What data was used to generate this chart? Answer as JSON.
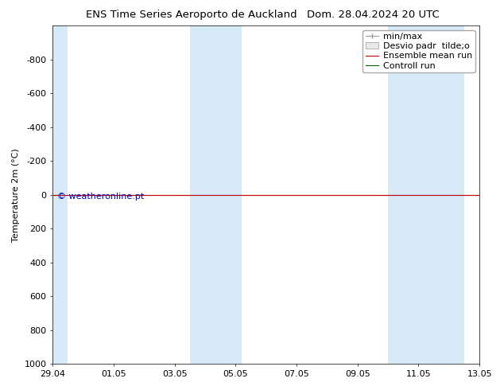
{
  "title_left": "ENS Time Series Aeroporto de Auckland",
  "title_right": "Dom. 28.04.2024 20 UTC",
  "ylabel": "Temperature 2m (°C)",
  "ylim": [
    1000,
    -1000
  ],
  "yticks": [
    1000,
    800,
    600,
    400,
    200,
    0,
    -200,
    -400,
    -600,
    -800
  ],
  "xtick_labels": [
    "29.04",
    "01.05",
    "03.05",
    "05.05",
    "07.05",
    "09.05",
    "11.05",
    "13.05"
  ],
  "xtick_positions": [
    0,
    2,
    4,
    6,
    8,
    10,
    12,
    14
  ],
  "blue_bands": [
    [
      0,
      0.5
    ],
    [
      4.5,
      5.5
    ],
    [
      5.5,
      6.2
    ],
    [
      11.0,
      12.0
    ],
    [
      12.0,
      13.5
    ]
  ],
  "green_line_y": 0,
  "red_line_y": 0,
  "background_color": "#ffffff",
  "plot_bg_color": "#ffffff",
  "blue_band_color": "#d6eaf8",
  "legend_entries": [
    "min/max",
    "Desvio padr  tilde;o",
    "Ensemble mean run",
    "Controll run"
  ],
  "legend_colors": [
    "#999999",
    "#cccccc",
    "#cc0000",
    "#006600"
  ],
  "watermark": "© weatheronline.pt",
  "watermark_color": "#0000bb",
  "font_size": 8,
  "title_font_size": 9.5
}
